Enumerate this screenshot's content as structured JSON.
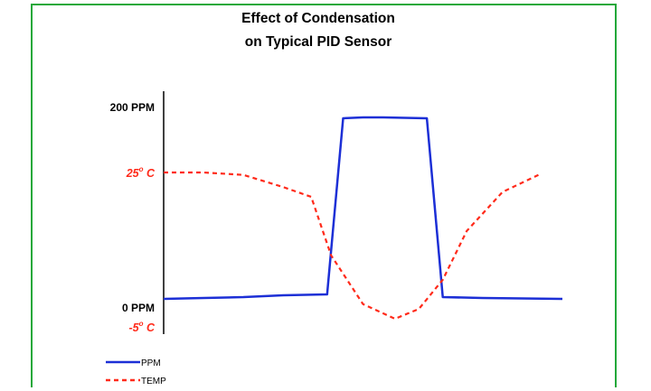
{
  "chart_data": {
    "type": "line",
    "title_line1": "Effect of Condensation",
    "title_line2": "on Typical PID Sensor",
    "left_axis_labels": {
      "top": "200 PPM",
      "bottom": "0 PPM"
    },
    "temp_labels": {
      "high": {
        "value": "25",
        "sup": "o",
        "unit": " C"
      },
      "low": {
        "value": "-5",
        "sup": "o",
        "unit": " C"
      }
    },
    "ppm_range": [
      0,
      200
    ],
    "temp_range": [
      -5,
      25
    ],
    "x_range": [
      0,
      100
    ],
    "grid": false,
    "legend_placement": "bottom-left",
    "series": [
      {
        "name": "PPM",
        "color": "#1c2fd6",
        "style": "solid",
        "axis": "ppm",
        "x": [
          0,
          10,
          20,
          30,
          41,
          45,
          50,
          55,
          66,
          70,
          80,
          100
        ],
        "y": [
          0,
          1,
          2,
          4,
          5,
          200,
          201,
          201,
          200,
          2,
          1,
          0
        ]
      },
      {
        "name": "TEMP",
        "color": "#ff2a1a",
        "style": "dashed",
        "axis": "temp",
        "x": [
          0,
          10,
          20,
          30,
          37,
          42,
          50,
          58,
          64,
          70,
          76,
          85,
          94
        ],
        "y": [
          25,
          25,
          24.5,
          22,
          20,
          8,
          -2,
          -5,
          -3,
          3,
          13,
          21,
          24.5
        ]
      }
    ]
  },
  "colors": {
    "frame_border": "#22a83a",
    "axis": "#000000"
  }
}
